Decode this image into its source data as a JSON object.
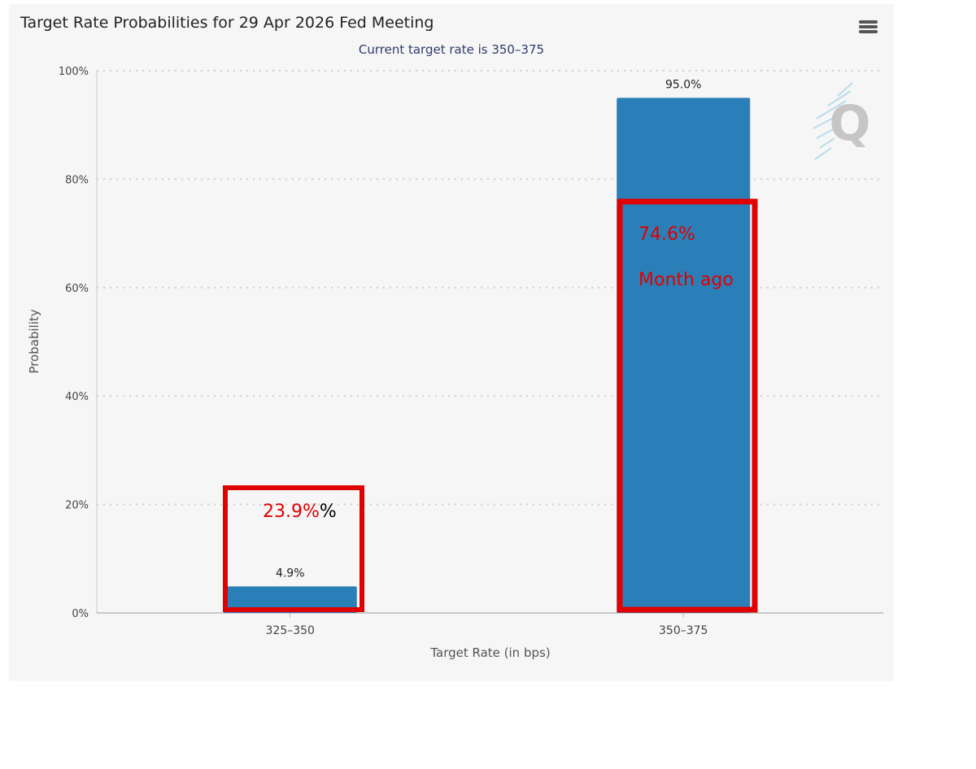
{
  "chart_data": {
    "type": "bar",
    "title": "Target Rate Probabilities for 29 Apr 2026 Fed Meeting",
    "subtitle": "Current target rate is 350–375",
    "xlabel": "Target Rate (in bps)",
    "ylabel": "Probability",
    "categories": [
      "325–350",
      "350–375"
    ],
    "values": [
      4.9,
      95.0
    ],
    "data_labels": [
      "4.9%",
      "95.0%"
    ],
    "ylim": [
      0,
      100
    ],
    "yticks": [
      0,
      20,
      40,
      60,
      80,
      100
    ],
    "ytick_labels": [
      "0%",
      "20%",
      "40%",
      "60%",
      "80%",
      "100%"
    ],
    "grid": true,
    "bar_color": "#2a7fb8",
    "annotations": {
      "left": {
        "value_text": "23.9%",
        "suffix_text": "%",
        "color": "#e00000"
      },
      "right": {
        "value_text": "74.6%",
        "note_text": "Month ago",
        "color": "#e00000"
      }
    }
  },
  "toolbar": {
    "menu_icon": "hamburger-menu-icon"
  },
  "watermark": {
    "icon": "q-logo-watermark"
  }
}
